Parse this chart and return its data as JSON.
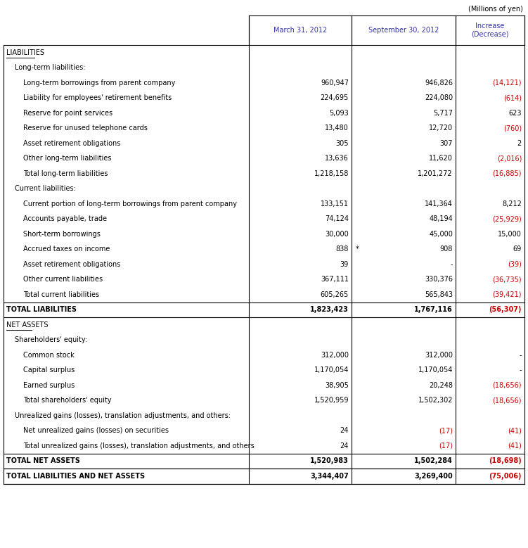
{
  "header_note": "(Millions of yen)",
  "col_headers": [
    "",
    "March 31, 2012",
    "September 30, 2012",
    "Increase\n(Decrease)"
  ],
  "rows": [
    {
      "label": "LIABILITIES",
      "indent": 0,
      "underline": true,
      "v1": "",
      "v2": "",
      "v3": "",
      "type": "section"
    },
    {
      "label": "Long-term liabilities:",
      "indent": 1,
      "v1": "",
      "v2": "",
      "v3": "",
      "type": "subsection"
    },
    {
      "label": "Long-term borrowings from parent company",
      "indent": 2,
      "v1": "960,947",
      "v2": "946,826",
      "v3": "(14,121)",
      "type": "data",
      "v3_red": true
    },
    {
      "label": "Liability for employees' retirement benefits",
      "indent": 2,
      "v1": "224,695",
      "v2": "224,080",
      "v3": "(614)",
      "type": "data",
      "v3_red": true
    },
    {
      "label": "Reserve for point services",
      "indent": 2,
      "v1": "5,093",
      "v2": "5,717",
      "v3": "623",
      "type": "data",
      "v3_red": false
    },
    {
      "label": "Reserve for unused telephone cards",
      "indent": 2,
      "v1": "13,480",
      "v2": "12,720",
      "v3": "(760)",
      "type": "data",
      "v3_red": true
    },
    {
      "label": "Asset retirement obligations",
      "indent": 2,
      "v1": "305",
      "v2": "307",
      "v3": "2",
      "type": "data",
      "v3_red": false
    },
    {
      "label": "Other long-term liabilities",
      "indent": 2,
      "v1": "13,636",
      "v2": "11,620",
      "v3": "(2,016)",
      "type": "data",
      "v3_red": true
    },
    {
      "label": "Total long-term liabilities",
      "indent": 2,
      "v1": "1,218,158",
      "v2": "1,201,272",
      "v3": "(16,885)",
      "type": "data",
      "v3_red": true
    },
    {
      "label": "Current liabilities:",
      "indent": 1,
      "v1": "",
      "v2": "",
      "v3": "",
      "type": "subsection"
    },
    {
      "label": "Current portion of long-term borrowings from parent company",
      "indent": 2,
      "v1": "133,151",
      "v2": "141,364",
      "v3": "8,212",
      "type": "data",
      "v3_red": false
    },
    {
      "label": "Accounts payable, trade",
      "indent": 2,
      "v1": "74,124",
      "v2": "48,194",
      "v3": "(25,929)",
      "type": "data",
      "v3_red": true
    },
    {
      "label": "Short-term borrowings",
      "indent": 2,
      "v1": "30,000",
      "v2": "45,000",
      "v3": "15,000",
      "type": "data",
      "v3_red": false
    },
    {
      "label": "Accrued taxes on income",
      "indent": 2,
      "v1": "838",
      "v2": "908",
      "v2_star": true,
      "v3": "69",
      "type": "data",
      "v3_red": false
    },
    {
      "label": "Asset retirement obligations",
      "indent": 2,
      "v1": "39",
      "v2": "-",
      "v3": "(39)",
      "type": "data",
      "v3_red": true
    },
    {
      "label": "Other current liabilities",
      "indent": 2,
      "v1": "367,111",
      "v2": "330,376",
      "v3": "(36,735)",
      "type": "data",
      "v3_red": true
    },
    {
      "label": "Total current liabilities",
      "indent": 2,
      "v1": "605,265",
      "v2": "565,843",
      "v3": "(39,421)",
      "type": "data",
      "v3_red": true
    },
    {
      "label": "TOTAL LIABILITIES",
      "indent": 0,
      "v1": "1,823,423",
      "v2": "1,767,116",
      "v3": "(56,307)",
      "type": "total",
      "v3_red": true
    },
    {
      "label": "NET ASSETS",
      "indent": 0,
      "underline": true,
      "v1": "",
      "v2": "",
      "v3": "",
      "type": "section"
    },
    {
      "label": "Shareholders' equity:",
      "indent": 1,
      "v1": "",
      "v2": "",
      "v3": "",
      "type": "subsection"
    },
    {
      "label": "Common stock",
      "indent": 2,
      "v1": "312,000",
      "v2": "312,000",
      "v3": "-",
      "type": "data",
      "v3_red": false
    },
    {
      "label": "Capital surplus",
      "indent": 2,
      "v1": "1,170,054",
      "v2": "1,170,054",
      "v3": "-",
      "type": "data",
      "v3_red": false
    },
    {
      "label": "Earned surplus",
      "indent": 2,
      "v1": "38,905",
      "v2": "20,248",
      "v3": "(18,656)",
      "type": "data",
      "v3_red": true
    },
    {
      "label": "Total shareholders' equity",
      "indent": 2,
      "v1": "1,520,959",
      "v2": "1,502,302",
      "v3": "(18,656)",
      "type": "data",
      "v3_red": true
    },
    {
      "label": "Unrealized gains (losses), translation adjustments, and others:",
      "indent": 1,
      "v1": "",
      "v2": "",
      "v3": "",
      "type": "subsection"
    },
    {
      "label": "Net unrealized gains (losses) on securities",
      "indent": 2,
      "v1": "24",
      "v2": "(17)",
      "v3": "(41)",
      "type": "data",
      "v3_red": true,
      "v2_red": true
    },
    {
      "label": "Total unrealized gains (losses), translation adjustments, and others",
      "indent": 2,
      "v1": "24",
      "v2": "(17)",
      "v3": "(41)",
      "type": "data",
      "v3_red": true,
      "v2_red": true
    },
    {
      "label": "TOTAL NET ASSETS",
      "indent": 0,
      "v1": "1,520,983",
      "v2": "1,502,284",
      "v3": "(18,698)",
      "type": "total",
      "v3_red": true
    },
    {
      "label": "TOTAL LIABILITIES AND NET ASSETS",
      "indent": 0,
      "v1": "3,344,407",
      "v2": "3,269,400",
      "v3": "(75,006)",
      "type": "total",
      "v3_red": true
    }
  ],
  "border_color": "#000000",
  "text_color": "#000000",
  "red_color": "#cc0000",
  "blue_color": "#3333aa",
  "bg_color": "#ffffff",
  "font_size": 7.0,
  "header_font_size": 7.0,
  "note_font_size": 7.0
}
